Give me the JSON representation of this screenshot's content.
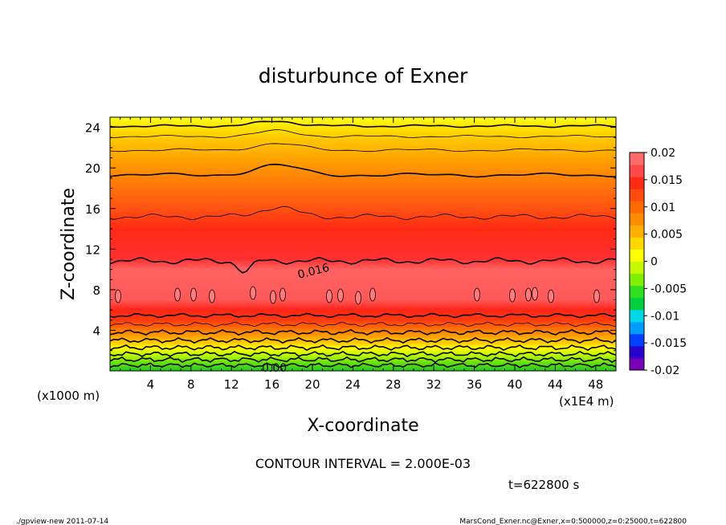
{
  "chart_data": {
    "type": "heatmap",
    "title": "disturbunce of Exner",
    "xlabel": "X-coordinate",
    "ylabel": "Z-coordinate",
    "x_unit_left": "(x1000 m)",
    "x_unit_right": "(x1E4 m)",
    "x_ticks": [
      "4",
      "8",
      "12",
      "16",
      "20",
      "24",
      "28",
      "32",
      "36",
      "40",
      "44",
      "48"
    ],
    "y_ticks": [
      "4",
      "8",
      "12",
      "16",
      "20",
      "24"
    ],
    "xlim": [
      0,
      50
    ],
    "ylim": [
      0,
      25
    ],
    "colorbar": {
      "tick_labels": [
        "0.02",
        "0.015",
        "0.01",
        "0.005",
        "0",
        "-0.005",
        "-0.01",
        "-0.015",
        "-0.02"
      ],
      "range": [
        -0.02,
        0.02
      ],
      "colors": [
        "#7a00b8",
        "#2a00cc",
        "#0040ff",
        "#009cff",
        "#00d8e8",
        "#00d040",
        "#30e020",
        "#80f000",
        "#c8f800",
        "#ffff00",
        "#ffd800",
        "#ffb000",
        "#ff8c00",
        "#ff6a00",
        "#ff4a10",
        "#ff2a14",
        "#ff4848",
        "#ff6a6a"
      ]
    },
    "contour_labels": [
      "0.016",
      "0.00"
    ],
    "annotation": "CONTOUR INTERVAL = 2.000E-03",
    "time": "t=622800 s"
  },
  "footer": {
    "left": "./gpview-new   2011-07-14",
    "right": "MarsCond_Exner.nc@Exner,x=0:500000,z=0:25000,t=622800"
  }
}
